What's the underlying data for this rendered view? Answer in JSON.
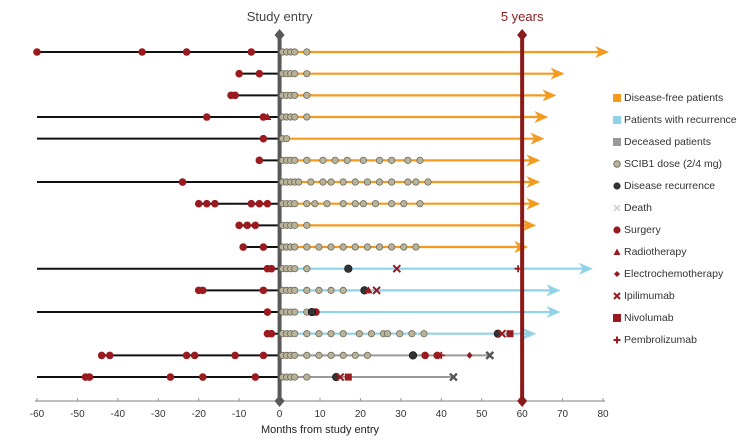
{
  "chart_data": {
    "type": "swimmer",
    "title": "",
    "xlabel": "Months from study entry",
    "ylabel": "",
    "xlim": [
      -60,
      80
    ],
    "xticks": [
      -60,
      -50,
      -40,
      -30,
      -20,
      -10,
      0,
      10,
      20,
      30,
      40,
      50,
      60,
      70,
      80
    ],
    "reference_lines": [
      {
        "label": "Study entry",
        "x": 0,
        "color": "#595959"
      },
      {
        "label": "5 years",
        "x": 60,
        "color": "#8b1a1a"
      }
    ],
    "colors": {
      "disease_free": "#f39a1f",
      "recurrence": "#8fd3e8",
      "deceased": "#9a9a9a",
      "pre_entry": "#111111",
      "dose": "#b9b39a",
      "treatment": "#9a1b1f",
      "recurrence_marker": "#333333",
      "study_entry": "#595959",
      "five_years": "#8b1a1a"
    },
    "legend": [
      {
        "label": "Disease-free patients",
        "symbol": "square",
        "color": "#f39a1f"
      },
      {
        "label": "Patients with recurrence",
        "symbol": "square",
        "color": "#8fd3e8"
      },
      {
        "label": "Deceased patients",
        "symbol": "square",
        "color": "#9a9a9a"
      },
      {
        "label": "SCIB1 dose (2/4 mg)",
        "symbol": "circle-open",
        "color": "#b9b39a"
      },
      {
        "label": "Disease recurrence",
        "symbol": "circle",
        "color": "#333333"
      },
      {
        "label": "Death",
        "symbol": "x-grey",
        "color": "#cccccc"
      },
      {
        "label": "Surgery",
        "symbol": "circle",
        "color": "#9a1b1f"
      },
      {
        "label": "Radiotherapy",
        "symbol": "triangle",
        "color": "#9a1b1f"
      },
      {
        "label": "Electrochemotherapy",
        "symbol": "diamond",
        "color": "#9a1b1f"
      },
      {
        "label": "Ipilimumab",
        "symbol": "x",
        "color": "#9a1b1f"
      },
      {
        "label": "Nivolumab",
        "symbol": "square",
        "color": "#9a1b1f"
      },
      {
        "label": "Pembrolizumab",
        "symbol": "plus",
        "color": "#9a1b1f"
      }
    ],
    "patients": [
      {
        "status": "disease_free",
        "start": -60,
        "end": 81,
        "surgery": [
          -60,
          -34,
          -23,
          -7
        ],
        "doses": [
          0,
          1,
          2,
          3,
          6
        ]
      },
      {
        "status": "disease_free",
        "start": -10,
        "end": 70,
        "surgery": [
          -10,
          -5
        ],
        "doses": [
          0,
          1,
          2,
          3,
          6
        ]
      },
      {
        "status": "disease_free",
        "start": -12,
        "end": 68,
        "surgery": [
          -12,
          -11
        ],
        "doses": [
          0,
          1,
          2,
          3,
          6
        ]
      },
      {
        "status": "disease_free",
        "start": -60,
        "end": 66,
        "surgery": [
          -18,
          -4
        ],
        "radiotherapy": [
          -3
        ],
        "doses": [
          0,
          1,
          2,
          3,
          6
        ]
      },
      {
        "status": "disease_free",
        "start": -60,
        "end": 65,
        "surgery": [
          -4
        ],
        "doses": [
          0,
          1
        ]
      },
      {
        "status": "disease_free",
        "start": -5,
        "end": 64,
        "surgery": [
          -5
        ],
        "doses": [
          0,
          1,
          2,
          3,
          6,
          10,
          13,
          16,
          20,
          24,
          27,
          31,
          34
        ]
      },
      {
        "status": "disease_free",
        "start": -60,
        "end": 64,
        "surgery": [
          -24
        ],
        "doses": [
          0,
          1,
          2,
          3,
          4,
          7,
          10,
          12,
          15,
          18,
          21,
          24,
          27,
          31,
          33,
          36
        ]
      },
      {
        "status": "disease_free",
        "start": -20,
        "end": 64,
        "surgery": [
          -20,
          -18,
          -16,
          -7,
          -5,
          -3
        ],
        "doses": [
          0,
          1,
          2,
          3,
          6,
          8,
          11,
          15,
          18,
          20,
          23,
          27,
          30,
          34
        ]
      },
      {
        "status": "disease_free",
        "start": -10,
        "end": 63,
        "surgery": [
          -10,
          -8,
          -6
        ],
        "doses": [
          0,
          1,
          2,
          3,
          6
        ]
      },
      {
        "status": "disease_free",
        "start": -9,
        "end": 61,
        "surgery": [
          -9,
          -4
        ],
        "doses": [
          0,
          1,
          2,
          3,
          6,
          9,
          12,
          15,
          18,
          21,
          24,
          27,
          30,
          33
        ]
      },
      {
        "status": "recurrence",
        "start": -60,
        "end": 77,
        "surgery": [
          -3,
          -2
        ],
        "doses": [
          0,
          1,
          2,
          3,
          6
        ],
        "recurrence": [
          17
        ],
        "ipilimumab": [
          29
        ],
        "pembrolizumab": [
          59
        ]
      },
      {
        "status": "recurrence",
        "start": -20,
        "end": 69,
        "surgery": [
          -20,
          -19,
          -4
        ],
        "doses": [
          0,
          1,
          2,
          3,
          6,
          9,
          12,
          15
        ],
        "recurrence": [
          21
        ],
        "radiotherapy": [
          22
        ],
        "ipilimumab": [
          24
        ]
      },
      {
        "status": "recurrence",
        "start": -60,
        "end": 69,
        "surgery": [
          -3,
          9
        ],
        "doses": [
          0,
          1,
          2,
          3,
          6
        ],
        "recurrence": [
          8
        ]
      },
      {
        "status": "recurrence",
        "start": -3,
        "end": 63,
        "surgery": [
          -3,
          -2
        ],
        "doses": [
          0,
          1,
          2,
          3,
          6,
          9,
          12,
          15,
          19,
          22,
          25,
          26,
          29,
          32,
          35
        ],
        "recurrence": [
          54
        ],
        "ipilimumab": [
          55
        ],
        "nivolumab": [
          57
        ]
      },
      {
        "status": "deceased",
        "start": -44,
        "end": 52,
        "surgery": [
          -44,
          -42,
          -23,
          -21,
          -11,
          -4,
          36,
          39
        ],
        "doses": [
          0,
          1,
          2,
          3,
          6,
          9,
          12,
          15,
          18,
          21
        ],
        "recurrence": [
          33
        ],
        "pembrolizumab": [
          40
        ],
        "electrochemotherapy": [
          47
        ],
        "death": [
          52
        ]
      },
      {
        "status": "deceased",
        "start": -60,
        "end": 43,
        "surgery": [
          -48,
          -47,
          -27,
          -19,
          -6
        ],
        "doses": [
          0,
          1,
          2,
          3,
          6
        ],
        "recurrence": [
          14
        ],
        "ipilimumab": [
          15
        ],
        "nivolumab": [
          17
        ],
        "death": [
          43
        ]
      }
    ]
  }
}
